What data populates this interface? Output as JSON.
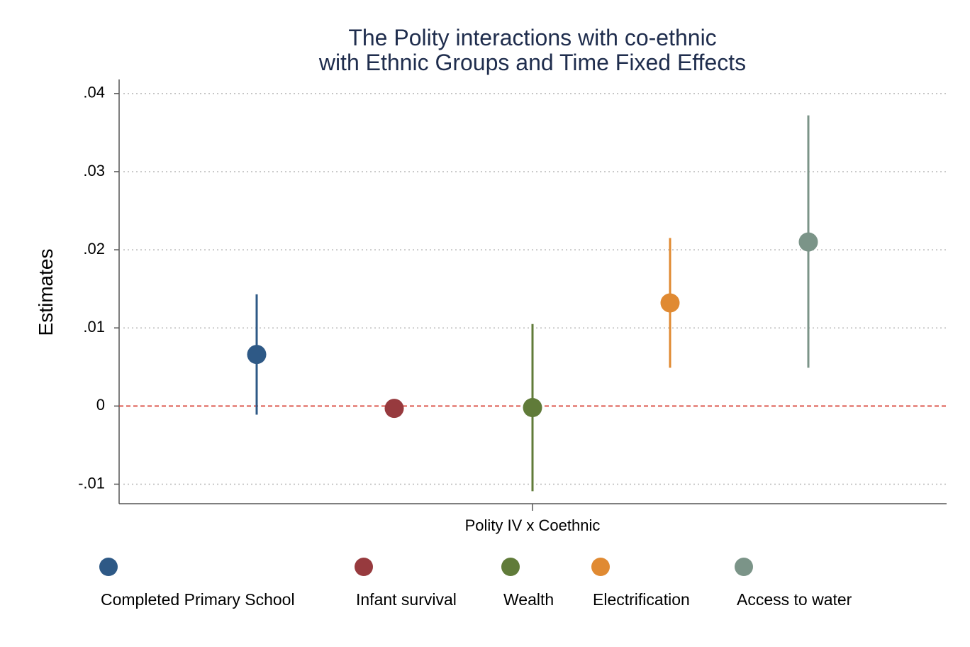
{
  "chart_data": {
    "type": "scatter",
    "title": [
      "The Polity interactions with co-ethnic",
      "with Ethnic Groups and Time Fixed Effects"
    ],
    "ylabel": "Estimates",
    "xlabel": "",
    "x_category": "Polity IV x Coethnic",
    "ylim": [
      -0.0125,
      0.0418
    ],
    "yticks": [
      -0.01,
      0,
      0.01,
      0.02,
      0.03,
      0.04
    ],
    "ytick_labels": [
      "-.01",
      "0",
      ".01",
      ".02",
      ".03",
      ".04"
    ],
    "grid": true,
    "reference_line": {
      "y": 0,
      "color": "#d6372b",
      "style": "dashed"
    },
    "legend_position": "bottom",
    "series": [
      {
        "name": "Completed Primary School",
        "estimate": 0.0066,
        "ci_low": -0.0011,
        "ci_high": 0.0143,
        "color": "#2e5986"
      },
      {
        "name": "Infant survival",
        "estimate": -0.0003,
        "ci_low": -0.0003,
        "ci_high": -0.0003,
        "color": "#973a3e"
      },
      {
        "name": "Wealth",
        "estimate": -0.0002,
        "ci_low": -0.0109,
        "ci_high": 0.0105,
        "color": "#607b39"
      },
      {
        "name": "Electrification",
        "estimate": 0.0132,
        "ci_low": 0.0049,
        "ci_high": 0.0215,
        "color": "#e08a32"
      },
      {
        "name": "Access to water",
        "estimate": 0.021,
        "ci_low": 0.0049,
        "ci_high": 0.0372,
        "color": "#7b9488"
      }
    ]
  }
}
